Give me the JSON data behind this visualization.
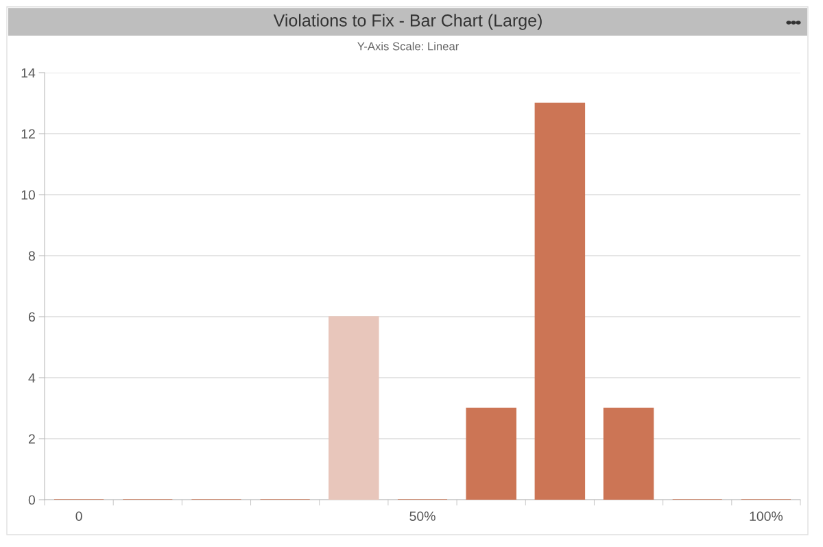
{
  "chart_data": {
    "type": "bar",
    "title": "Violations to Fix - Bar Chart (Large)",
    "subtitle": "Y-Axis Scale: Linear",
    "categories": [
      "0",
      null,
      null,
      null,
      null,
      "50%",
      null,
      null,
      null,
      null,
      "100%"
    ],
    "values": [
      0,
      0,
      0,
      0,
      6,
      0,
      3,
      13,
      3,
      0,
      0
    ],
    "colors": [
      "#cc7555",
      "#cc7555",
      "#cc7555",
      "#cc7555",
      "#e8c6bb",
      "#cc7555",
      "#cc7555",
      "#cc7555",
      "#cc7555",
      "#cc7555",
      "#cc7555"
    ],
    "ylim": [
      0,
      14
    ],
    "yticks": [
      0,
      2,
      4,
      6,
      8,
      10,
      12,
      14
    ],
    "grid": "y"
  }
}
